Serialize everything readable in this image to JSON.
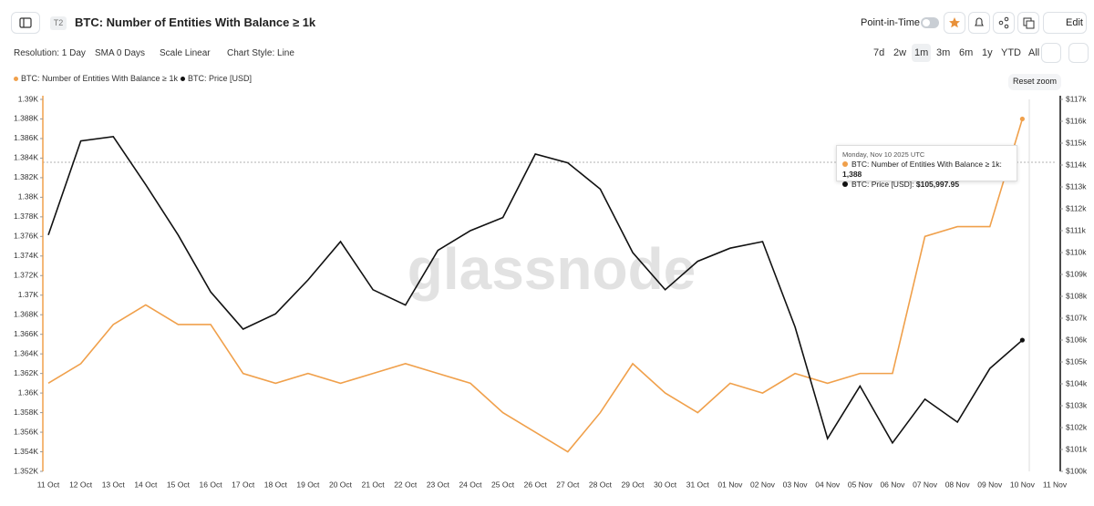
{
  "header": {
    "badge": "T2",
    "title": "BTC: Number of Entities With Balance ≥ 1k",
    "point_in_time": "Point-in-Time",
    "edit": "Edit"
  },
  "toolbar": {
    "controls": [
      "Resolution: 1 Day",
      "SMA 0 Days",
      "Scale Linear",
      "Chart Style: Line"
    ],
    "ranges": [
      "7d",
      "2w",
      "1m",
      "3m",
      "6m",
      "1y",
      "YTD",
      "All"
    ],
    "active_range": "1m",
    "reset_zoom": "Reset zoom"
  },
  "watermark": "glassnode",
  "tooltip": {
    "date": "Monday, Nov 10 2025 UTC",
    "rows": [
      {
        "label": "BTC: Number of Entities With Balance ≥ 1k:",
        "value": "1,388"
      },
      {
        "label": "BTC: Price [USD]:",
        "value": "$105,997.95"
      }
    ]
  },
  "chart_data": {
    "type": "line",
    "categories": [
      "11 Oct",
      "12 Oct",
      "13 Oct",
      "14 Oct",
      "15 Oct",
      "16 Oct",
      "17 Oct",
      "18 Oct",
      "19 Oct",
      "20 Oct",
      "21 Oct",
      "22 Oct",
      "23 Oct",
      "24 Oct",
      "25 Oct",
      "26 Oct",
      "27 Oct",
      "28 Oct",
      "29 Oct",
      "30 Oct",
      "31 Oct",
      "01 Nov",
      "02 Nov",
      "03 Nov",
      "04 Nov",
      "05 Nov",
      "06 Nov",
      "07 Nov",
      "08 Nov",
      "09 Nov",
      "10 Nov",
      "11 Nov"
    ],
    "series": [
      {
        "name": "BTC: Number of Entities With Balance ≥ 1k",
        "color": "#f0a04b",
        "axis": "y",
        "values": [
          1361,
          1363,
          1367,
          1369,
          1367,
          1367,
          1362,
          1361,
          1362,
          1361,
          1362,
          1363,
          1362,
          1361,
          1358,
          1356,
          1354,
          1358,
          1363,
          1360,
          1358,
          1361,
          1360,
          1362,
          1361,
          1362,
          1362,
          1376,
          1377,
          1377,
          1388,
          null
        ]
      },
      {
        "name": "BTC: Price [USD]",
        "color": "#111111",
        "axis": "y2",
        "values": [
          110800,
          115100,
          115300,
          113100,
          110800,
          108200,
          106500,
          107200,
          108750,
          110500,
          108300,
          107600,
          110100,
          111000,
          111600,
          114500,
          114100,
          112900,
          110000,
          108300,
          109600,
          110200,
          110500,
          106600,
          101500,
          103900,
          101300,
          103300,
          102250,
          104700,
          105997.95,
          null
        ]
      }
    ],
    "ylim": [
      1352,
      1390
    ],
    "yticks": [
      {
        "value": 1352,
        "label": "1.352K"
      },
      {
        "value": 1354,
        "label": "1.354K"
      },
      {
        "value": 1356,
        "label": "1.356K"
      },
      {
        "value": 1358,
        "label": "1.358K"
      },
      {
        "value": 1360,
        "label": "1.36K"
      },
      {
        "value": 1362,
        "label": "1.362K"
      },
      {
        "value": 1364,
        "label": "1.364K"
      },
      {
        "value": 1366,
        "label": "1.366K"
      },
      {
        "value": 1368,
        "label": "1.368K"
      },
      {
        "value": 1370,
        "label": "1.37K"
      },
      {
        "value": 1372,
        "label": "1.372K"
      },
      {
        "value": 1374,
        "label": "1.374K"
      },
      {
        "value": 1376,
        "label": "1.376K"
      },
      {
        "value": 1378,
        "label": "1.378K"
      },
      {
        "value": 1380,
        "label": "1.38K"
      },
      {
        "value": 1382,
        "label": "1.382K"
      },
      {
        "value": 1384,
        "label": "1.384K"
      },
      {
        "value": 1386,
        "label": "1.386K"
      },
      {
        "value": 1388,
        "label": "1.388K"
      },
      {
        "value": 1390,
        "label": "1.39K"
      }
    ],
    "y2lim": [
      100000,
      117000
    ],
    "y2ticks": [
      {
        "value": 100000,
        "label": "$100k"
      },
      {
        "value": 101000,
        "label": "$101k"
      },
      {
        "value": 102000,
        "label": "$102k"
      },
      {
        "value": 103000,
        "label": "$103k"
      },
      {
        "value": 104000,
        "label": "$104k"
      },
      {
        "value": 105000,
        "label": "$105k"
      },
      {
        "value": 106000,
        "label": "$106k"
      },
      {
        "value": 107000,
        "label": "$107k"
      },
      {
        "value": 108000,
        "label": "$108k"
      },
      {
        "value": 109000,
        "label": "$109k"
      },
      {
        "value": 110000,
        "label": "$110k"
      },
      {
        "value": 111000,
        "label": "$111k"
      },
      {
        "value": 112000,
        "label": "$112k"
      },
      {
        "value": 113000,
        "label": "$113k"
      },
      {
        "value": 114000,
        "label": "$114k"
      },
      {
        "value": 115000,
        "label": "$115k"
      },
      {
        "value": 116000,
        "label": "$116k"
      },
      {
        "value": 117000,
        "label": "$117k"
      }
    ],
    "grid": false,
    "legend": "top-left"
  }
}
